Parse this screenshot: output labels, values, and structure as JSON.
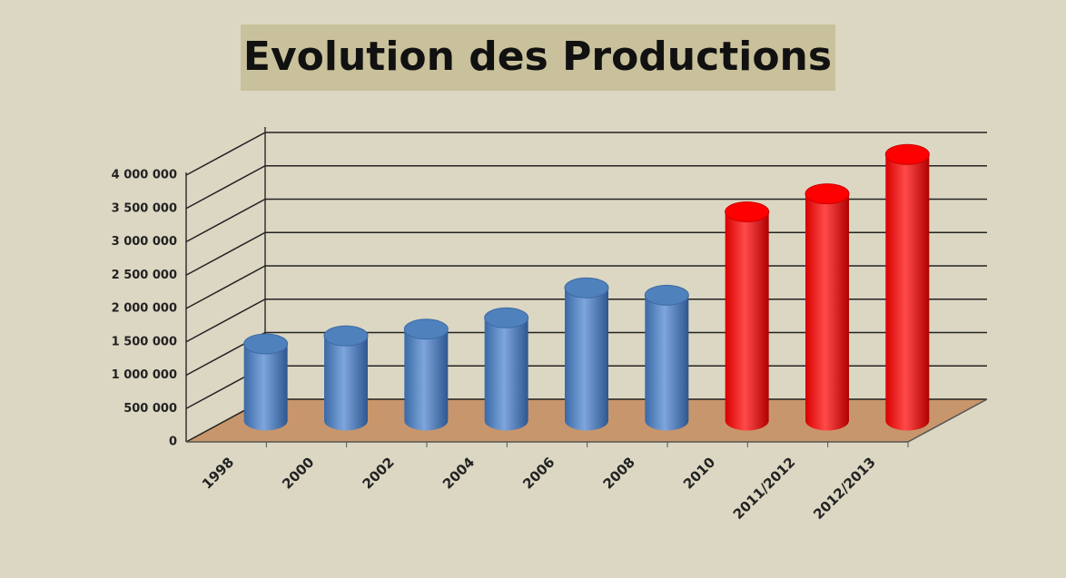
{
  "chart_data": {
    "type": "bar3d",
    "title": "Evolution des Productions",
    "categories": [
      "1998",
      "2000",
      "2002",
      "2004",
      "2006",
      "2008",
      "2010",
      "2011/2012",
      "2012/2013"
    ],
    "values": [
      1150000,
      1270000,
      1370000,
      1540000,
      1990000,
      1880000,
      3130000,
      3400000,
      3990000
    ],
    "colors": [
      "#4f81bd",
      "#4f81bd",
      "#4f81bd",
      "#4f81bd",
      "#4f81bd",
      "#4f81bd",
      "#ff0000",
      "#ff0000",
      "#ff0000"
    ],
    "ylim": [
      0,
      4500000
    ],
    "yticks": [
      0,
      {
        "value": 500000,
        "label": "500 000"
      },
      {
        "value": 1000000,
        "label": "1 000 000"
      },
      {
        "value": 1500000,
        "label": "1 500 000"
      },
      {
        "value": 2000000,
        "label": "2 000 000"
      },
      {
        "value": 2500000,
        "label": "2 500 000"
      },
      {
        "value": 3000000,
        "label": "3 000 000"
      },
      {
        "value": 3500000,
        "label": "3 500 000"
      },
      {
        "value": 4000000,
        "label": "4 000 000"
      }
    ],
    "grid": true
  }
}
